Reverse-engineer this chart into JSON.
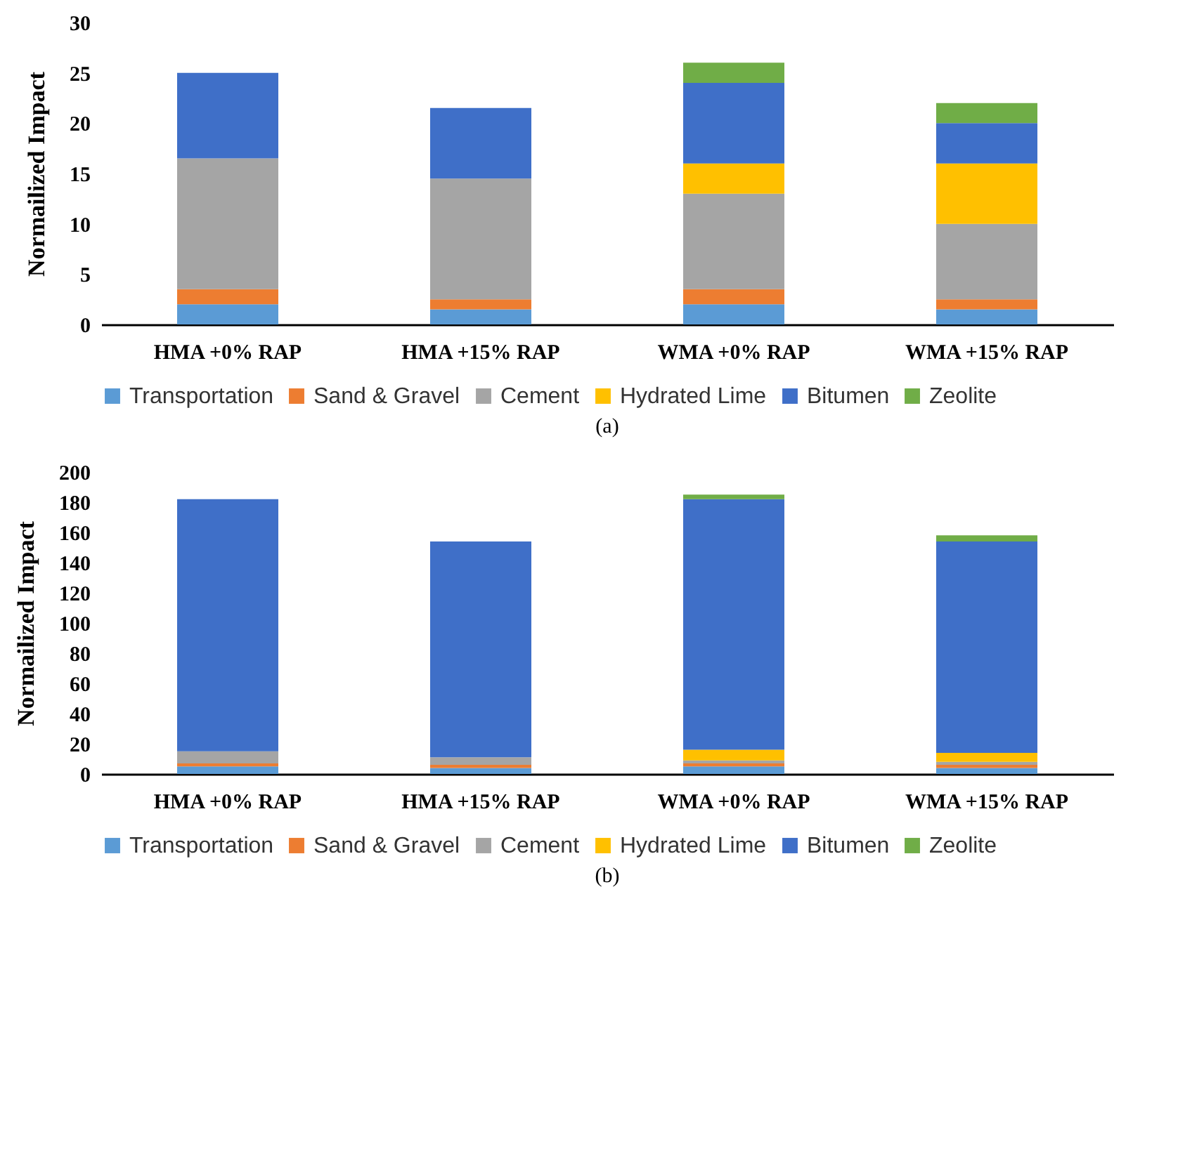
{
  "chart_data": [
    {
      "type": "bar",
      "stacked": true,
      "ylabel": "Normailized Impact",
      "categories": [
        "HMA +0% RAP",
        "HMA +15% RAP",
        "WMA +0% RAP",
        "WMA +15% RAP"
      ],
      "ylim": [
        0,
        30
      ],
      "yticks": [
        0,
        5,
        10,
        15,
        20,
        25,
        30
      ],
      "grid": false,
      "legend": "bottom",
      "annotations": [
        "(a)"
      ],
      "series": [
        {
          "name": "Transportation",
          "color": "#5b9bd5",
          "values": [
            2,
            1.5,
            2,
            1.5
          ]
        },
        {
          "name": "Sand & Gravel",
          "color": "#ed7d31",
          "values": [
            1.5,
            1,
            1.5,
            1
          ]
        },
        {
          "name": "Cement",
          "color": "#a5a5a5",
          "values": [
            13,
            12,
            9.5,
            7.5
          ]
        },
        {
          "name": "Hydrated Lime",
          "color": "#ffc000",
          "values": [
            null,
            null,
            3,
            6
          ]
        },
        {
          "name": "Bitumen",
          "color": "#3f6fc8",
          "values": [
            8.5,
            7,
            8,
            4
          ]
        },
        {
          "name": "Zeolite",
          "color": "#70ad47",
          "values": [
            null,
            null,
            2,
            2
          ]
        }
      ]
    },
    {
      "type": "bar",
      "stacked": true,
      "ylabel": "Normailized Impact",
      "categories": [
        "HMA +0% RAP",
        "HMA +15% RAP",
        "WMA +0% RAP",
        "WMA +15% RAP"
      ],
      "ylim": [
        0,
        200
      ],
      "yticks": [
        0,
        20,
        40,
        60,
        80,
        100,
        120,
        140,
        160,
        180,
        200
      ],
      "grid": false,
      "legend": "bottom",
      "annotations": [
        "(b)"
      ],
      "series": [
        {
          "name": "Transportation",
          "color": "#5b9bd5",
          "values": [
            5,
            4,
            5,
            4
          ]
        },
        {
          "name": "Sand & Gravel",
          "color": "#ed7d31",
          "values": [
            2,
            2,
            2,
            2
          ]
        },
        {
          "name": "Cement",
          "color": "#a5a5a5",
          "values": [
            8,
            5,
            2,
            2
          ]
        },
        {
          "name": "Hydrated Lime",
          "color": "#ffc000",
          "values": [
            null,
            null,
            7,
            6
          ]
        },
        {
          "name": "Bitumen",
          "color": "#3f6fc8",
          "values": [
            167,
            143,
            166,
            140
          ]
        },
        {
          "name": "Zeolite",
          "color": "#70ad47",
          "values": [
            null,
            null,
            3,
            4
          ]
        }
      ]
    }
  ]
}
